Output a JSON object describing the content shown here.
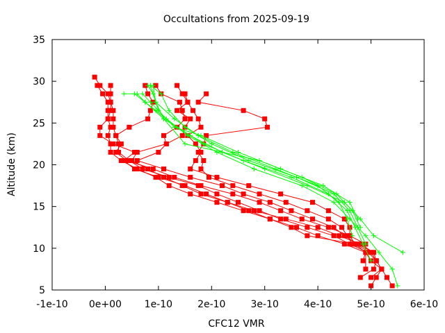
{
  "chart_data": {
    "type": "line",
    "title": "Occultations from 2025-09-19",
    "xlabel": "CFC12 VMR",
    "ylabel": "Altitude (km)",
    "xlim": [
      -1e-10,
      6e-10
    ],
    "ylim": [
      5,
      35
    ],
    "x_tick_labels": [
      "-1e-10",
      "0e+00",
      "1e-10",
      "2e-10",
      "3e-10",
      "4e-10",
      "5e-10",
      "6e-10"
    ],
    "y_tick_labels": [
      "5",
      "10",
      "15",
      "20",
      "25",
      "30",
      "35"
    ],
    "grid": false,
    "legend": "none",
    "series_colors": {
      "occultation": "#ff0000",
      "reference": "#00ff00"
    },
    "series": [
      {
        "style": "red-squares",
        "points": [
          [
            5.4e-10,
            5.5
          ],
          [
            5.3e-10,
            6.5
          ],
          [
            5.2e-10,
            7.5
          ],
          [
            5.1e-10,
            8.5
          ],
          [
            5e-10,
            9.5
          ],
          [
            4.7e-10,
            10.5
          ],
          [
            3.8e-10,
            11.5
          ],
          [
            3.5e-10,
            12.5
          ],
          [
            3.1e-10,
            13.5
          ],
          [
            2.6e-10,
            14.5
          ],
          [
            2.1e-10,
            15.5
          ],
          [
            1.6e-10,
            16.5
          ],
          [
            1.2e-10,
            17.5
          ],
          [
            9.5e-11,
            18.5
          ],
          [
            6e-11,
            19.5
          ],
          [
            3e-11,
            20.5
          ],
          [
            1e-11,
            21.5
          ],
          [
            1e-11,
            22.5
          ],
          [
            5e-12,
            23.5
          ],
          [
            1e-11,
            24.5
          ],
          [
            5e-12,
            25.5
          ],
          [
            1e-11,
            26.5
          ],
          [
            1e-11,
            27.5
          ],
          [
            5e-12,
            28.5
          ],
          [
            -1e-11,
            29.5
          ],
          [
            -2e-11,
            30.5
          ]
        ]
      },
      {
        "style": "red-squares",
        "points": [
          [
            5e-10,
            5.5
          ],
          [
            5.1e-10,
            6.5
          ],
          [
            5.2e-10,
            7.5
          ],
          [
            5e-10,
            8.5
          ],
          [
            4.9e-10,
            9.5
          ],
          [
            4.9e-10,
            10.5
          ],
          [
            4.6e-10,
            11.5
          ],
          [
            4.2e-10,
            12.5
          ],
          [
            3.7e-10,
            13.5
          ],
          [
            3.3e-10,
            14.5
          ],
          [
            2.9e-10,
            15.5
          ],
          [
            2.4e-10,
            16.5
          ],
          [
            1.8e-10,
            17.5
          ],
          [
            1.3e-10,
            18.5
          ],
          [
            9e-11,
            19.5
          ],
          [
            4e-11,
            20.5
          ],
          [
            2e-11,
            21.5
          ],
          [
            3e-11,
            22.5
          ],
          [
            2e-11,
            23.5
          ],
          [
            1.5e-11,
            24.5
          ],
          [
            1.5e-11,
            25.5
          ],
          [
            1.5e-11,
            26.5
          ],
          [
            1e-11,
            27.5
          ],
          [
            1e-11,
            28.5
          ],
          [
            1e-11,
            29.5
          ]
        ]
      },
      {
        "style": "red-squares",
        "points": [
          [
            4.8e-10,
            6.5
          ],
          [
            5.05e-10,
            7.5
          ],
          [
            5.1e-10,
            8.5
          ],
          [
            5.05e-10,
            9.5
          ],
          [
            4.8e-10,
            10.5
          ],
          [
            4.4e-10,
            11.5
          ],
          [
            4e-10,
            12.5
          ],
          [
            3.4e-10,
            13.5
          ],
          [
            2.8e-10,
            14.5
          ],
          [
            2.3e-10,
            15.5
          ],
          [
            1.9e-10,
            16.5
          ],
          [
            1.5e-10,
            17.5
          ],
          [
            1e-10,
            18.5
          ],
          [
            5.5e-11,
            19.5
          ],
          [
            3.5e-11,
            20.5
          ],
          [
            5.5e-11,
            21.5
          ],
          [
            1.5e-11,
            22.5
          ],
          [
            -1e-11,
            23.5
          ],
          [
            -1e-11,
            24.5
          ],
          [
            5e-12,
            25.5
          ],
          [
            5e-12,
            26.5
          ],
          [
            5e-12,
            27.5
          ],
          [
            -5e-12,
            28.5
          ],
          [
            -1.5e-11,
            29.5
          ]
        ]
      },
      {
        "style": "red-squares",
        "points": [
          [
            5e-10,
            6.5
          ],
          [
            5.2e-10,
            7.5
          ],
          [
            5.1e-10,
            8.5
          ],
          [
            4.95e-10,
            9.5
          ],
          [
            4.6e-10,
            10.5
          ],
          [
            4.3e-10,
            11.5
          ],
          [
            3.8e-10,
            12.5
          ],
          [
            3.3e-10,
            13.5
          ],
          [
            2.9e-10,
            14.5
          ],
          [
            2.5e-10,
            15.5
          ],
          [
            2.1e-10,
            16.5
          ],
          [
            1.75e-10,
            17.5
          ],
          [
            1.2e-10,
            18.5
          ],
          [
            7e-11,
            19.5
          ],
          [
            4.5e-11,
            20.5
          ],
          [
            2.5e-11,
            21.5
          ],
          [
            2.5e-11,
            22.5
          ],
          [
            2e-11,
            23.5
          ],
          [
            4.5e-11,
            24.5
          ],
          [
            8e-11,
            25.5
          ],
          [
            8.5e-11,
            26.5
          ],
          [
            9e-11,
            27.5
          ],
          [
            8e-11,
            28.5
          ],
          [
            7.5e-11,
            29.5
          ]
        ]
      },
      {
        "style": "red-squares",
        "points": [
          [
            4.85e-10,
            8.5
          ],
          [
            4.9e-10,
            9.5
          ],
          [
            4.5e-10,
            10.5
          ],
          [
            4e-10,
            11.5
          ],
          [
            3.6e-10,
            12.5
          ],
          [
            3.1e-10,
            13.5
          ],
          [
            2.7e-10,
            14.5
          ],
          [
            2.3e-10,
            15.5
          ],
          [
            1.8e-10,
            16.5
          ],
          [
            1.45e-10,
            17.5
          ],
          [
            1.1e-10,
            18.5
          ],
          [
            8e-11,
            19.5
          ],
          [
            5e-11,
            20.5
          ],
          [
            6e-11,
            21.5
          ],
          [
            1.15e-10,
            22.5
          ],
          [
            1.1e-10,
            23.5
          ],
          [
            1.35e-10,
            24.5
          ],
          [
            1.5e-10,
            25.5
          ],
          [
            1.45e-10,
            26.5
          ],
          [
            1.4e-10,
            27.5
          ],
          [
            1.05e-10,
            28.5
          ],
          [
            9.5e-11,
            29.5
          ]
        ]
      },
      {
        "style": "red-squares",
        "points": [
          [
            5.05e-10,
            9.5
          ],
          [
            4.75e-10,
            10.5
          ],
          [
            4.5e-10,
            11.5
          ],
          [
            4.3e-10,
            12.5
          ],
          [
            3.9e-10,
            13.5
          ],
          [
            3.5e-10,
            14.5
          ],
          [
            3.1e-10,
            15.5
          ],
          [
            2.6e-10,
            16.5
          ],
          [
            2.2e-10,
            17.5
          ],
          [
            1.6e-10,
            18.5
          ],
          [
            1.1e-10,
            19.5
          ],
          [
            6e-11,
            20.5
          ],
          [
            1e-10,
            21.5
          ],
          [
            1.15e-10,
            22.5
          ],
          [
            1.45e-10,
            23.5
          ],
          [
            1.5e-10,
            24.5
          ],
          [
            1.6e-10,
            25.5
          ],
          [
            1.35e-10,
            26.5
          ],
          [
            1.55e-10,
            27.5
          ],
          [
            1.45e-10,
            28.5
          ],
          [
            1.35e-10,
            29.5
          ]
        ]
      },
      {
        "style": "red-squares",
        "points": [
          [
            4.65e-10,
            10.5
          ],
          [
            4.55e-10,
            11.5
          ],
          [
            4.45e-10,
            12.5
          ],
          [
            4.2e-10,
            13.5
          ],
          [
            3.8e-10,
            14.5
          ],
          [
            3.4e-10,
            15.5
          ],
          [
            2.9e-10,
            16.5
          ],
          [
            2.4e-10,
            17.5
          ],
          [
            1.95e-10,
            18.5
          ],
          [
            1.8e-10,
            19.5
          ],
          [
            1.85e-10,
            20.5
          ],
          [
            1.75e-10,
            21.5
          ],
          [
            1.85e-10,
            22.5
          ],
          [
            1.9e-10,
            23.5
          ],
          [
            3.05e-10,
            24.5
          ],
          [
            3e-10,
            25.5
          ],
          [
            2.6e-10,
            26.5
          ],
          [
            1.75e-10,
            27.5
          ],
          [
            1.9e-10,
            28.5
          ]
        ]
      },
      {
        "style": "red-squares",
        "points": [
          [
            4.9e-10,
            7.5
          ],
          [
            4.9e-10,
            9.5
          ],
          [
            4.7e-10,
            10.5
          ],
          [
            4.6e-10,
            11.5
          ],
          [
            4.6e-10,
            12.5
          ],
          [
            4.5e-10,
            13.5
          ],
          [
            4.2e-10,
            14.5
          ],
          [
            3.9e-10,
            15.5
          ],
          [
            3.3e-10,
            16.5
          ],
          [
            2.7e-10,
            17.5
          ],
          [
            2.1e-10,
            18.5
          ],
          [
            1.6e-10,
            19.5
          ],
          [
            1.7e-10,
            20.5
          ],
          [
            1.8e-10,
            21.5
          ],
          [
            1.7e-10,
            22.5
          ],
          [
            1.55e-10,
            23.5
          ],
          [
            1.8e-10,
            24.5
          ],
          [
            1.75e-10,
            25.5
          ],
          [
            1.65e-10,
            26.5
          ],
          [
            1.55e-10,
            27.5
          ],
          [
            1.5e-10,
            28.5
          ]
        ]
      },
      {
        "style": "green-plus",
        "points": [
          [
            5.5e-10,
            5.5
          ],
          [
            5.4e-10,
            7.5
          ],
          [
            5.15e-10,
            9.5
          ],
          [
            4.9e-10,
            11.5
          ],
          [
            4.6e-10,
            13.5
          ],
          [
            4.3e-10,
            15.5
          ],
          [
            3.7e-10,
            17.5
          ],
          [
            2.8e-10,
            19.5
          ],
          [
            2.1e-10,
            21.5
          ],
          [
            1.55e-10,
            23.5
          ],
          [
            1.15e-10,
            25.5
          ],
          [
            8.5e-11,
            27.5
          ],
          [
            7e-11,
            28.5
          ]
        ]
      },
      {
        "style": "green-plus",
        "points": [
          [
            5.6e-10,
            9.5
          ],
          [
            5.05e-10,
            11.5
          ],
          [
            4.8e-10,
            13.5
          ],
          [
            4.5e-10,
            15.5
          ],
          [
            3.8e-10,
            17.5
          ],
          [
            3e-10,
            19.5
          ],
          [
            2.2e-10,
            21.5
          ],
          [
            1.6e-10,
            23.5
          ],
          [
            1.1e-10,
            25.5
          ],
          [
            7.5e-11,
            27.5
          ],
          [
            6e-11,
            28.5
          ]
        ]
      },
      {
        "style": "green-plus",
        "points": [
          [
            5e-10,
            8.5
          ],
          [
            4.85e-10,
            10.5
          ],
          [
            4.7e-10,
            12.5
          ],
          [
            4.55e-10,
            14.5
          ],
          [
            4.2e-10,
            16.5
          ],
          [
            3.5e-10,
            18.5
          ],
          [
            2.6e-10,
            20.5
          ],
          [
            1.85e-10,
            22.5
          ],
          [
            1.35e-10,
            24.5
          ],
          [
            9.5e-11,
            26.5
          ],
          [
            7.5e-11,
            27.5
          ],
          [
            5.5e-11,
            28.5
          ],
          [
            3.5e-11,
            28.5
          ]
        ]
      },
      {
        "style": "green-plus",
        "points": [
          [
            4.9e-10,
            10.5
          ],
          [
            4.75e-10,
            12.5
          ],
          [
            4.6e-10,
            14.5
          ],
          [
            4.3e-10,
            16.5
          ],
          [
            3.6e-10,
            18.5
          ],
          [
            2.7e-10,
            20.5
          ],
          [
            2e-10,
            22.5
          ],
          [
            1.5e-10,
            24.5
          ],
          [
            1.2e-10,
            26.5
          ],
          [
            1.05e-10,
            28.5
          ],
          [
            8.5e-11,
            29.5
          ]
        ]
      },
      {
        "style": "green-plus",
        "points": [
          [
            4.65e-10,
            11.5
          ],
          [
            4.55e-10,
            13.5
          ],
          [
            4.4e-10,
            15.5
          ],
          [
            4e-10,
            17.5
          ],
          [
            3.2e-10,
            19.5
          ],
          [
            2.4e-10,
            21.5
          ],
          [
            1.75e-10,
            23.5
          ],
          [
            1.3e-10,
            25.5
          ],
          [
            9.5e-11,
            27.5
          ],
          [
            8.5e-11,
            29.5
          ]
        ]
      },
      {
        "style": "green-plus",
        "points": [
          [
            4.8e-10,
            12.5
          ],
          [
            4.65e-10,
            14.5
          ],
          [
            4.35e-10,
            16.5
          ],
          [
            3.7e-10,
            18.5
          ],
          [
            2.9e-10,
            20.5
          ],
          [
            2.2e-10,
            21.5
          ],
          [
            1.5e-10,
            22.5
          ],
          [
            1.1e-10,
            25.5
          ],
          [
            9.5e-11,
            27.5
          ],
          [
            9e-11,
            29.5
          ]
        ]
      },
      {
        "style": "green-plus",
        "points": [
          [
            4.75e-10,
            13.5
          ],
          [
            4.6e-10,
            15.5
          ],
          [
            4.1e-10,
            17.5
          ],
          [
            3.3e-10,
            19.5
          ],
          [
            2.5e-10,
            21.5
          ],
          [
            1.8e-10,
            23.5
          ],
          [
            1.3e-10,
            24.5
          ],
          [
            1e-10,
            26.5
          ],
          [
            9e-11,
            28.5
          ],
          [
            8e-11,
            29.5
          ]
        ]
      }
    ]
  }
}
